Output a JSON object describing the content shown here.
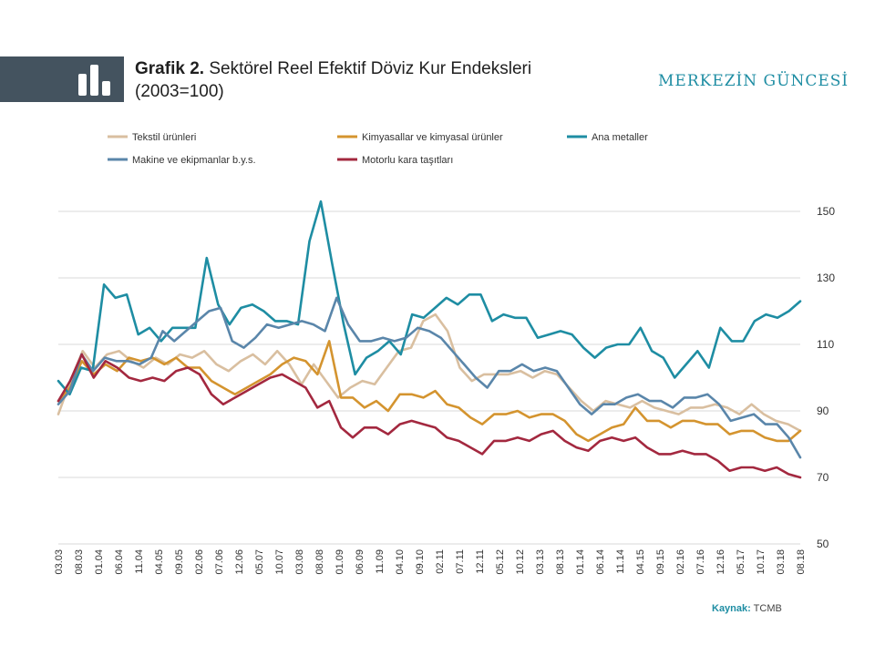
{
  "header": {
    "title_bold": "Grafik 2.",
    "title_rest": "Sektörel Reel Efektif Döviz Kur Endeksleri",
    "title_line2": "(2003=100)",
    "brand": "MERKEZİN GÜNCESİ",
    "icon": "bar-chart-icon",
    "icon_block_color": "#44535f"
  },
  "footer": {
    "source_label": "Kaynak:",
    "source_value": "TCMB"
  },
  "chart_data": {
    "type": "line",
    "title": "Sektörel Reel Efektif Döviz Kur Endeksleri (2003=100)",
    "ylim": [
      50,
      160
    ],
    "yticks": [
      50,
      70,
      90,
      110,
      130,
      150
    ],
    "y_axis_side": "right",
    "grid": "horizontal",
    "legend_position": "top",
    "x_labels": [
      "03.03",
      "08.03",
      "01.04",
      "06.04",
      "11.04",
      "04.05",
      "09.05",
      "02.06",
      "07.06",
      "12.06",
      "05.07",
      "10.07",
      "03.08",
      "08.08",
      "01.09",
      "06.09",
      "11.09",
      "04.10",
      "09.10",
      "02.11",
      "07.11",
      "12.11",
      "05.12",
      "10.12",
      "03.13",
      "08.13",
      "01.14",
      "06.14",
      "11.14",
      "04.15",
      "09.15",
      "02.16",
      "07.16",
      "12.16",
      "05.17",
      "10.17",
      "03.18",
      "08.18"
    ],
    "series": [
      {
        "name": "Tekstil ürünleri",
        "color": "#d9bfa0",
        "values": [
          89,
          99,
          108,
          103,
          107,
          108,
          105,
          103,
          106,
          104,
          107,
          106,
          108,
          104,
          102,
          105,
          107,
          104,
          108,
          104,
          98,
          104,
          99,
          94,
          97,
          99,
          98,
          103,
          108,
          109,
          117,
          119,
          114,
          103,
          99,
          101,
          101,
          101,
          102,
          100,
          102,
          101,
          97,
          93,
          90,
          93,
          92,
          91,
          93,
          91,
          90,
          89,
          91,
          91,
          92,
          91,
          89,
          92,
          89,
          87,
          86,
          84
        ]
      },
      {
        "name": "Kimyasallar ve kimyasal ürünler",
        "color": "#d4942f",
        "values": [
          93,
          97,
          105,
          101,
          104,
          102,
          106,
          105,
          106,
          104,
          106,
          103,
          103,
          99,
          97,
          95,
          97,
          99,
          101,
          104,
          106,
          105,
          101,
          111,
          94,
          94,
          91,
          93,
          90,
          95,
          95,
          94,
          96,
          92,
          91,
          88,
          86,
          89,
          89,
          90,
          88,
          89,
          89,
          87,
          83,
          81,
          83,
          85,
          86,
          91,
          87,
          87,
          85,
          87,
          87,
          86,
          86,
          83,
          84,
          84,
          82,
          81,
          81,
          84
        ]
      },
      {
        "name": "Ana metaller",
        "color": "#1e8da3",
        "values": [
          99,
          95,
          103,
          102,
          128,
          124,
          125,
          113,
          115,
          111,
          115,
          115,
          115,
          136,
          122,
          116,
          121,
          122,
          120,
          117,
          117,
          116,
          141,
          153,
          134,
          116,
          101,
          106,
          108,
          111,
          107,
          119,
          118,
          121,
          124,
          122,
          125,
          125,
          117,
          119,
          118,
          118,
          112,
          113,
          114,
          113,
          109,
          106,
          109,
          110,
          110,
          115,
          108,
          106,
          100,
          104,
          108,
          103,
          115,
          111,
          111,
          117,
          119,
          118,
          120,
          123
        ]
      },
      {
        "name": "Makine ve ekipmanlar b.y.s.",
        "color": "#5a86aa",
        "values": [
          92,
          96,
          107,
          102,
          106,
          105,
          105,
          104,
          106,
          114,
          111,
          114,
          117,
          120,
          121,
          111,
          109,
          112,
          116,
          115,
          116,
          117,
          116,
          114,
          124,
          116,
          111,
          111,
          112,
          111,
          112,
          115,
          114,
          112,
          108,
          104,
          100,
          97,
          102,
          102,
          104,
          102,
          103,
          102,
          97,
          92,
          89,
          92,
          92,
          94,
          95,
          93,
          93,
          91,
          94,
          94,
          95,
          92,
          87,
          88,
          89,
          86,
          86,
          82,
          76
        ]
      },
      {
        "name": "Motorlu kara taşıtları",
        "color": "#a3283f",
        "values": [
          93,
          99,
          107,
          100,
          105,
          103,
          100,
          99,
          100,
          99,
          102,
          103,
          101,
          95,
          92,
          94,
          96,
          98,
          100,
          101,
          99,
          97,
          91,
          93,
          85,
          82,
          85,
          85,
          83,
          86,
          87,
          86,
          85,
          82,
          81,
          79,
          77,
          81,
          81,
          82,
          81,
          83,
          84,
          81,
          79,
          78,
          81,
          82,
          81,
          82,
          79,
          77,
          77,
          78,
          77,
          77,
          75,
          72,
          73,
          73,
          72,
          73,
          71,
          70
        ]
      }
    ]
  }
}
